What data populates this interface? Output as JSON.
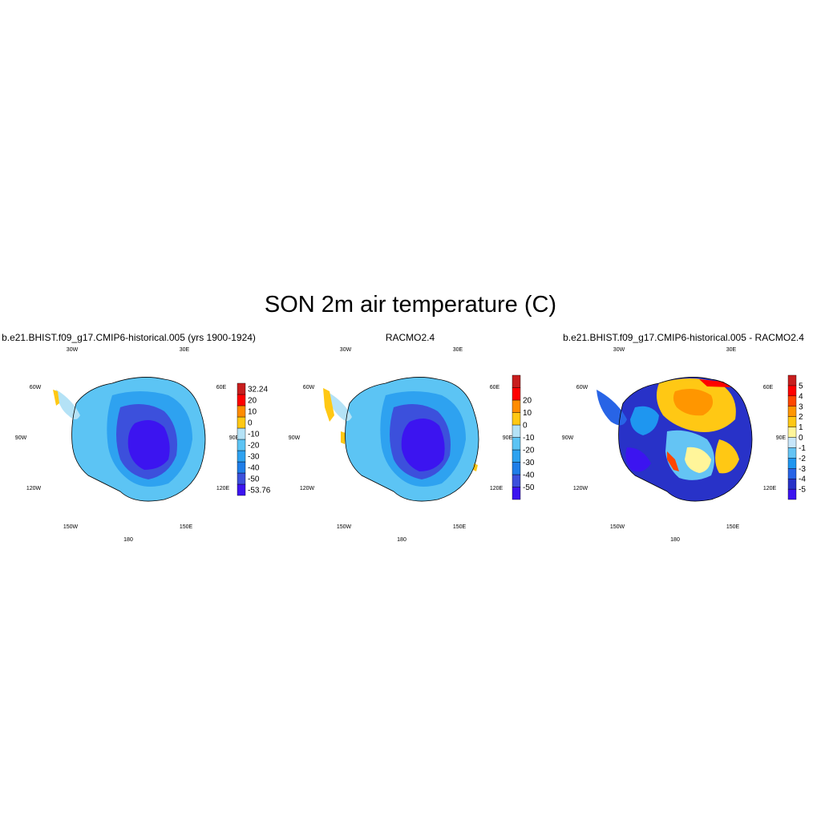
{
  "title": "SON 2m air temperature (C)",
  "panels": [
    {
      "title": "b.e21.BHIST.f09_g17.CMIP6-historical.005 (yrs 1900-1924)",
      "colorbar": {
        "colors": [
          "#3c14f0",
          "#3c50dc",
          "#1f7ee8",
          "#2ea2f0",
          "#5cc4f4",
          "#b4e2f6",
          "#ffc814",
          "#ff8c00",
          "#ff0000",
          "#c81e1e"
        ],
        "labels": [
          "-53.76",
          "-50",
          "-40",
          "-30",
          "-20",
          "-10",
          "0",
          "10",
          "20",
          "32.24"
        ]
      }
    },
    {
      "title": "RACMO2.4",
      "colorbar": {
        "colors": [
          "#3c14f0",
          "#3c50dc",
          "#1f7ee8",
          "#2ea2f0",
          "#5cc4f4",
          "#b4e2f6",
          "#ffc814",
          "#ff8c00",
          "#ff0000",
          "#c81e1e"
        ],
        "labels": [
          "-50",
          "-40",
          "-30",
          "-20",
          "-10",
          "0",
          "10",
          "20"
        ]
      }
    },
    {
      "title": "b.e21.BHIST.f09_g17.CMIP6-historical.005 - RACMO2.4",
      "colorbar": {
        "colors": [
          "#3c14f0",
          "#2832c8",
          "#2864e6",
          "#1e96f0",
          "#64c4f4",
          "#c8e6fa",
          "#fff59a",
          "#ffc814",
          "#ff9600",
          "#ff4600",
          "#ff0000",
          "#c81e1e"
        ],
        "labels": [
          "-5",
          "-4",
          "-3",
          "-2",
          "-1",
          "0",
          "1",
          "2",
          "3",
          "4",
          "5"
        ]
      }
    }
  ],
  "longitude_labels": [
    "30W",
    "30E",
    "60W",
    "60E",
    "90W",
    "90E",
    "120W",
    "120E",
    "150W",
    "150E",
    "180"
  ]
}
